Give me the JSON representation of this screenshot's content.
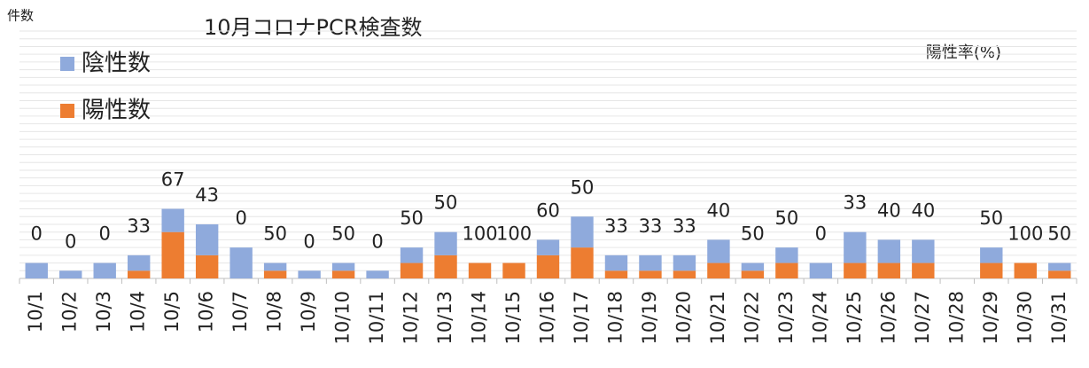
{
  "chart_data": {
    "type": "stacked_bar",
    "title": "10月コロナPCR検査数",
    "y_axis_label": "件数",
    "y2_axis_label": "陽性率(%)",
    "categories": [
      "10/1",
      "10/2",
      "10/3",
      "10/4",
      "10/5",
      "10/6",
      "10/7",
      "10/8",
      "10/9",
      "10/10",
      "10/11",
      "10/12",
      "10/13",
      "10/14",
      "10/15",
      "10/16",
      "10/17",
      "10/18",
      "10/19",
      "10/20",
      "10/21",
      "10/22",
      "10/23",
      "10/24",
      "10/25",
      "10/26",
      "10/27",
      "10/28",
      "10/29",
      "10/30",
      "10/31"
    ],
    "series": [
      {
        "name": "陰性数",
        "color": "#8faadc",
        "values": [
          2,
          1,
          2,
          2,
          3,
          4,
          4,
          1,
          1,
          1,
          1,
          2,
          3,
          0,
          0,
          2,
          4,
          2,
          2,
          2,
          3,
          1,
          2,
          2,
          4,
          3,
          3,
          0,
          2,
          0,
          1
        ]
      },
      {
        "name": "陽性数",
        "color": "#ed7d31",
        "values": [
          0,
          0,
          0,
          1,
          6,
          3,
          0,
          1,
          0,
          1,
          0,
          2,
          3,
          2,
          2,
          3,
          4,
          1,
          1,
          1,
          2,
          1,
          2,
          0,
          2,
          2,
          2,
          0,
          2,
          2,
          1
        ]
      },
      {
        "name": "陽性率",
        "axis": "y2",
        "values": [
          0,
          0,
          0,
          33,
          67,
          43,
          0,
          50,
          0,
          50,
          0,
          50,
          50,
          100,
          100,
          60,
          50,
          33,
          33,
          33,
          40,
          50,
          50,
          0,
          33,
          40,
          40,
          null,
          50,
          100,
          50
        ]
      }
    ],
    "ylim": [
      0,
      32
    ],
    "yticks": [
      0,
      1,
      2,
      3,
      4,
      5,
      6,
      7,
      8,
      9,
      10,
      11,
      12,
      13,
      14,
      15,
      16,
      17,
      18,
      19,
      20,
      21,
      22,
      23,
      24,
      25,
      26,
      27,
      28,
      29,
      30,
      31,
      32
    ],
    "grid": true,
    "legend": "top-left"
  }
}
